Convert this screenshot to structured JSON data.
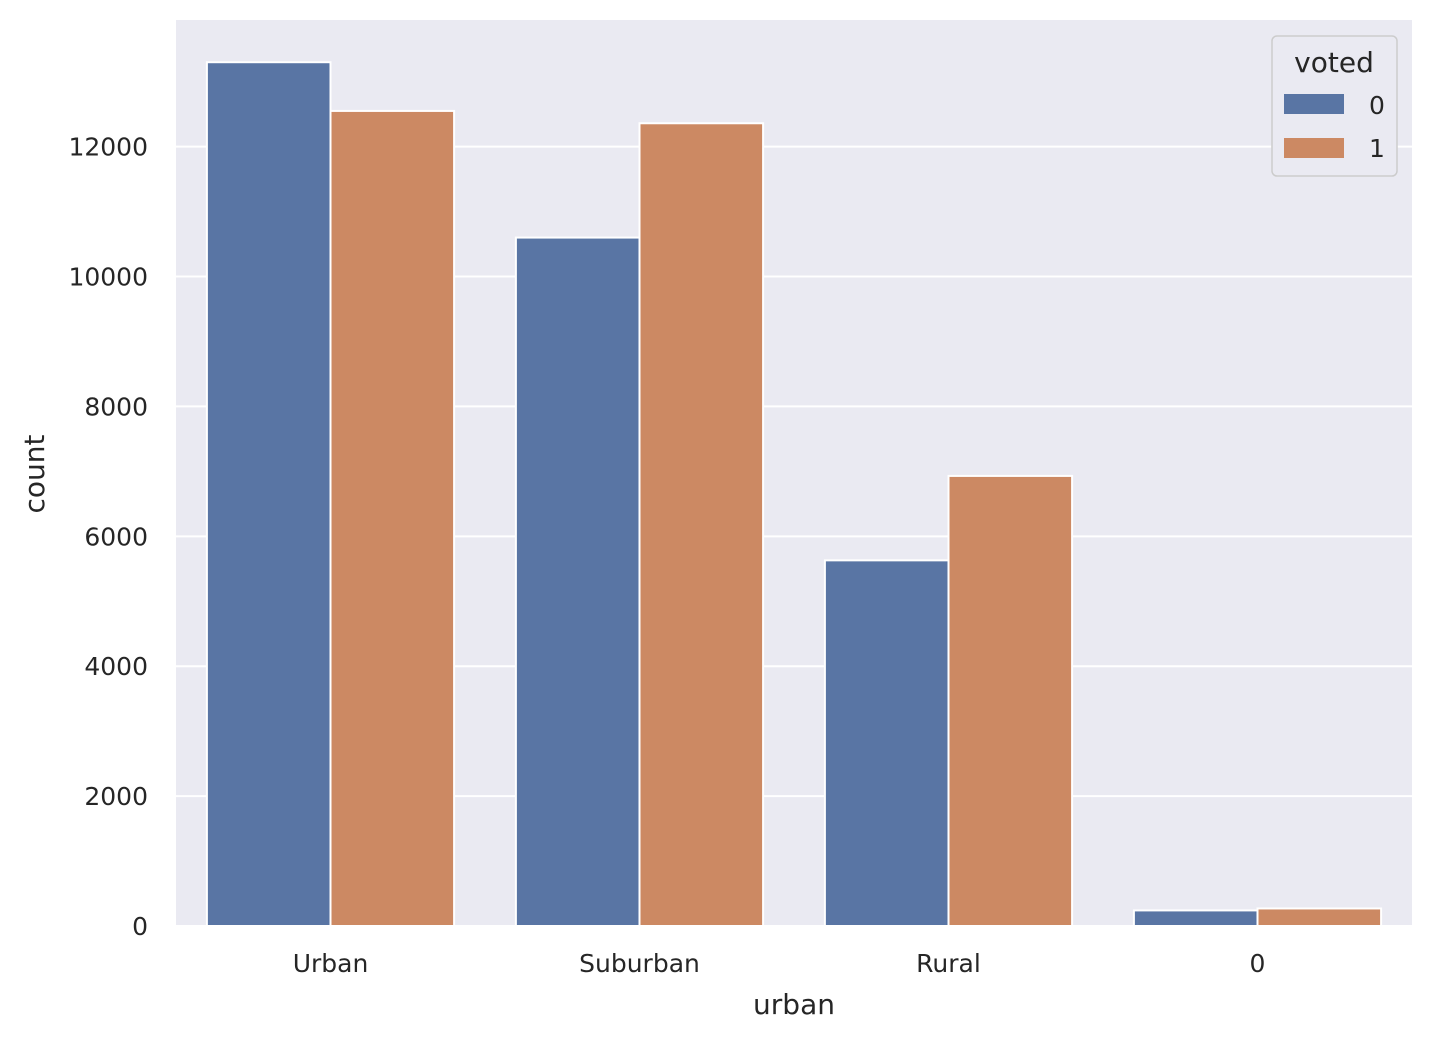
{
  "chart_data": {
    "type": "bar",
    "xlabel": "urban",
    "ylabel": "count",
    "categories": [
      "Urban",
      "Suburban",
      "Rural",
      "0"
    ],
    "series": [
      {
        "name": "0",
        "values": [
          13300,
          10600,
          5630,
          240
        ]
      },
      {
        "name": "1",
        "values": [
          12550,
          12360,
          6930,
          270
        ]
      }
    ],
    "ylim": [
      0,
      13950
    ],
    "yticks": [
      0,
      2000,
      4000,
      6000,
      8000,
      10000,
      12000
    ],
    "grid": true,
    "legend": {
      "title": "voted",
      "placement": "top-right"
    },
    "colors": {
      "series": [
        "#5975a4",
        "#cc8963"
      ],
      "background": "#eaeaf2",
      "grid": "#ffffff",
      "text": "#262626"
    }
  }
}
